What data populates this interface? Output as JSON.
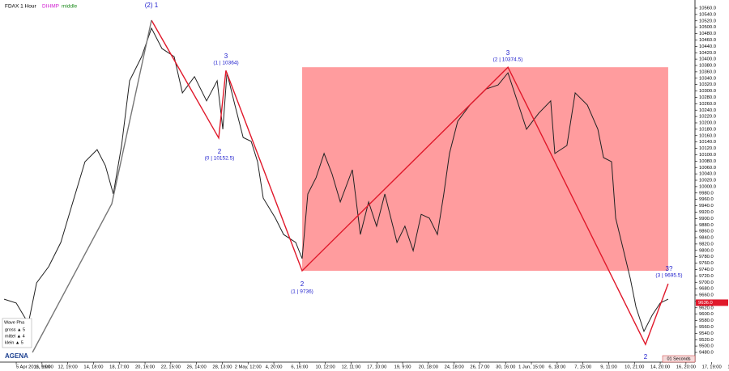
{
  "chart_data": {
    "type": "line",
    "symbol": "FDAX 1 Hour",
    "indicator": "DIHMP",
    "mode": "middle",
    "categories": [
      "5 Apr 2016, 16:00",
      "11, 9:00",
      "12, 19:00",
      "14, 18:00",
      "18, 17:00",
      "20, 16:00",
      "22, 15:00",
      "26, 14:00",
      "28, 13:00",
      "2 May, 12:00",
      "4, 20:00",
      "6, 16:00",
      "10, 12:00",
      "12, 11:00",
      "17, 10:00",
      "19, 9:00",
      "20, 18:00",
      "24, 18:00",
      "26, 17:00",
      "30, 16:00",
      "1 Jun, 15:00",
      "6, 18:00",
      "7, 15:00",
      "9, 11:00",
      "10, 21:00",
      "14, 20:00",
      "16, 20:00",
      "17, 19:00",
      "18, 22:00"
    ],
    "xlim": [
      -0.63,
      26.35
    ],
    "ylim": [
      9480,
      10560
    ],
    "yticks": [
      {
        "value": 10560,
        "label": "10560.0"
      },
      {
        "value": 10540,
        "label": "10540.0"
      },
      {
        "value": 10520,
        "label": "10520.0"
      },
      {
        "value": 10500,
        "label": "10500.0"
      },
      {
        "value": 10480,
        "label": "10480.0"
      },
      {
        "value": 10460,
        "label": "10460.0"
      },
      {
        "value": 10440,
        "label": "10440.0"
      },
      {
        "value": 10420,
        "label": "10420.0"
      },
      {
        "value": 10400,
        "label": "10400.0"
      },
      {
        "value": 10380,
        "label": "10380.0"
      },
      {
        "value": 10360,
        "label": "10360.0"
      },
      {
        "value": 10340,
        "label": "10340.0"
      },
      {
        "value": 10320,
        "label": "10320.0"
      },
      {
        "value": 10300,
        "label": "10300.0"
      },
      {
        "value": 10280,
        "label": "10280.0"
      },
      {
        "value": 10260,
        "label": "10260.0"
      },
      {
        "value": 10240,
        "label": "10240.0"
      },
      {
        "value": 10220,
        "label": "10220.0"
      },
      {
        "value": 10200,
        "label": "10200.0"
      },
      {
        "value": 10180,
        "label": "10180.0"
      },
      {
        "value": 10160,
        "label": "10160.0"
      },
      {
        "value": 10140,
        "label": "10140.0"
      },
      {
        "value": 10120,
        "label": "10120.0"
      },
      {
        "value": 10100,
        "label": "10100.0"
      },
      {
        "value": 10080,
        "label": "10080.0"
      },
      {
        "value": 10060,
        "label": "10060.0"
      },
      {
        "value": 10040,
        "label": "10040.0"
      },
      {
        "value": 10020,
        "label": "10020.0"
      },
      {
        "value": 10000,
        "label": "10000.0"
      },
      {
        "value": 9980,
        "label": "9980.0"
      },
      {
        "value": 9960,
        "label": "9960.0"
      },
      {
        "value": 9940,
        "label": "9940.0"
      },
      {
        "value": 9920,
        "label": "9920.0"
      },
      {
        "value": 9900,
        "label": "9900.0"
      },
      {
        "value": 9880,
        "label": "9880.0"
      },
      {
        "value": 9860,
        "label": "9860.0"
      },
      {
        "value": 9840,
        "label": "9840.0"
      },
      {
        "value": 9820,
        "label": "9820.0"
      },
      {
        "value": 9800,
        "label": "9800.0"
      },
      {
        "value": 9780,
        "label": "9780.0"
      },
      {
        "value": 9760,
        "label": "9760.0"
      },
      {
        "value": 9740,
        "label": "9740.0"
      },
      {
        "value": 9720,
        "label": "9720.0"
      },
      {
        "value": 9700,
        "label": "9700.0"
      },
      {
        "value": 9680,
        "label": "9680.0"
      },
      {
        "value": 9660,
        "label": "9660.0"
      },
      {
        "value": 9640,
        "label": "9640.0"
      },
      {
        "value": 9620,
        "label": "9620.0"
      },
      {
        "value": 9600,
        "label": "9600.0"
      },
      {
        "value": 9580,
        "label": "9580.0"
      },
      {
        "value": 9560,
        "label": "9560.0"
      },
      {
        "value": 9540,
        "label": "9540.0"
      },
      {
        "value": 9520,
        "label": "9520.0"
      },
      {
        "value": 9500,
        "label": "9500.0"
      },
      {
        "value": 9480,
        "label": "9480.0"
      }
    ],
    "series": [
      {
        "color": "#222222",
        "x": [
          -0.47,
          0,
          0.47,
          0.79,
          1.26,
          1.73,
          2.2,
          2.67,
          3.14,
          3.46,
          3.77,
          4.09,
          4.4,
          4.87,
          5.25,
          5.66,
          6.13,
          6.45,
          6.92,
          7.39,
          7.8,
          8.02,
          8.18,
          8.49,
          8.81,
          9.12,
          9.37,
          9.59,
          10.06,
          10.38,
          10.85,
          11.1,
          11.32,
          11.64,
          11.95,
          12.26,
          12.58,
          13.05,
          13.36,
          13.68,
          13.99,
          14.31,
          14.78,
          15.09,
          15.41,
          15.72,
          16.04,
          16.35,
          16.6,
          16.82,
          17.14,
          17.61,
          18.24,
          18.71,
          19.09,
          19.5,
          19.81,
          20.28,
          20.75,
          20.91,
          21.38,
          21.7,
          22.17,
          22.58,
          22.8,
          23.11,
          23.27,
          23.58,
          23.84,
          24.06,
          24.37,
          24.69,
          25,
          25.31
        ],
        "values": [
          9647,
          9635,
          9571,
          9698,
          9749,
          9825,
          9952,
          10078,
          10116,
          10066,
          9977,
          10129,
          10332,
          10408,
          10497,
          10433,
          10408,
          10294,
          10345,
          10269,
          10332,
          10180,
          10357,
          10256,
          10154,
          10142,
          10078,
          9964,
          9901,
          9850,
          9825,
          9774,
          9977,
          10028,
          10104,
          10040,
          9952,
          10053,
          9850,
          9952,
          9876,
          9977,
          9825,
          9876,
          9799,
          9913,
          9901,
          9850,
          9977,
          10104,
          10205,
          10256,
          10306,
          10319,
          10357,
          10256,
          10180,
          10230,
          10269,
          10104,
          10129,
          10294,
          10256,
          10180,
          10091,
          10078,
          9901,
          9799,
          9711,
          9622,
          9546,
          9597,
          9635,
          9647
        ]
      },
      {
        "color": "#e0192b",
        "x": [
          5.25,
          7.86,
          8.14,
          11.1,
          19.09,
          24.43,
          25.31
        ],
        "values": [
          10522,
          10152.5,
          10364,
          9736,
          10374.5,
          9505,
          9695.5
        ]
      },
      {
        "color": "#777777",
        "x": [
          0.63,
          3.71,
          5.25
        ],
        "values": [
          9480,
          9946,
          10522
        ]
      }
    ],
    "zone": {
      "color": "#ff9c9e",
      "x": [
        11.1,
        25.31
      ],
      "y": [
        9736,
        10374.5
      ]
    },
    "price_tag": {
      "value": 9636,
      "label": "9636.0"
    },
    "annotations": [
      "(2) 1",
      "3",
      "(1 | 10364)",
      "2",
      "(0 | 10152.5)",
      "2",
      "(1 | 9736)",
      "3",
      "(2 | 10374.5)",
      "3?",
      "(3 | 9695.5)",
      "2"
    ],
    "legend": {
      "title": "Wave Pha",
      "rows": [
        "gross ▲ 5",
        "mittel ▲ 4",
        "klein ▲ 5"
      ]
    },
    "timer": "01 Seconds",
    "logo": "AGENA"
  }
}
